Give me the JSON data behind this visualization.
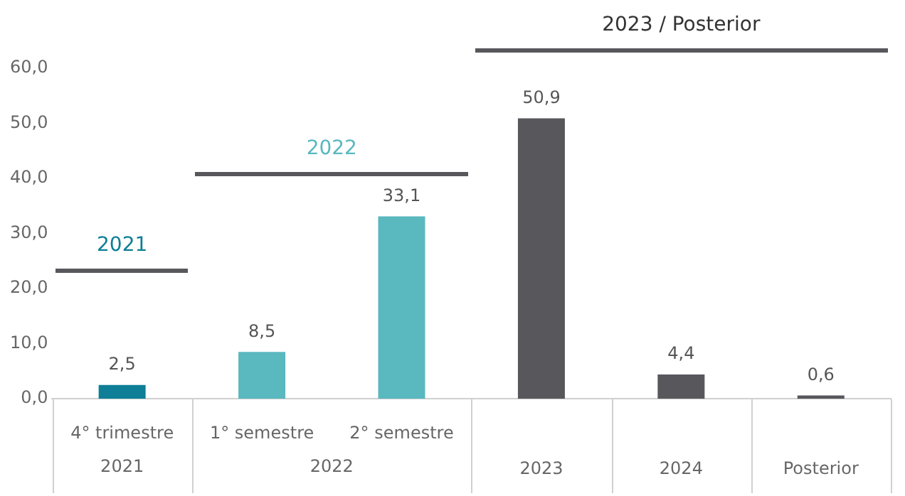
{
  "chart_data": {
    "type": "bar",
    "categories": [
      "4° trimestre",
      "1° semestre",
      "2° semestre",
      "2023",
      "2024",
      "Posterior"
    ],
    "values": [
      2.5,
      8.5,
      33.1,
      50.9,
      4.4,
      0.6
    ],
    "colors": [
      "#0e7f96",
      "#5ab8bf",
      "#5ab8bf",
      "#58575c",
      "#58575c",
      "#58575c"
    ],
    "value_labels": [
      "2,5",
      "8,5",
      "33,1",
      "50,9",
      "4,4",
      "0,6"
    ],
    "ylim": [
      0,
      60
    ],
    "yticks": [
      {
        "value": 0,
        "label": "0,0"
      },
      {
        "value": 10,
        "label": "10,0"
      },
      {
        "value": 20,
        "label": "20,0"
      },
      {
        "value": 30,
        "label": "30,0"
      },
      {
        "value": 40,
        "label": "40,0"
      },
      {
        "value": 50,
        "label": "50,0"
      },
      {
        "value": 60,
        "label": "60,0"
      }
    ],
    "annotations": [
      "2021",
      "2022",
      "2023 / Posterior",
      "2021",
      "2022"
    ],
    "grid": false,
    "legend": false
  }
}
